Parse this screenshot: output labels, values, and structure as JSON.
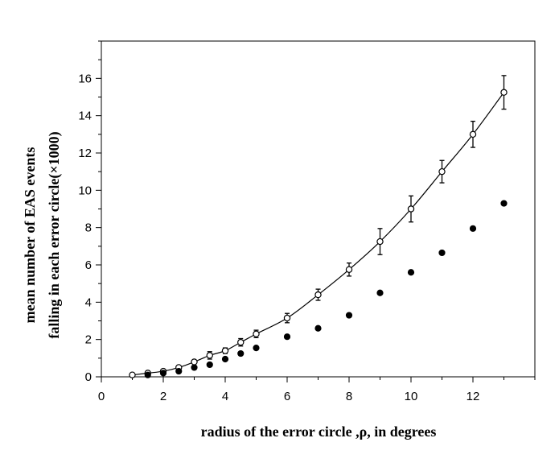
{
  "chart_data": {
    "type": "scatter",
    "title": "",
    "xlabel": "radius of the error circle ,ρ, in degrees",
    "ylabel_line1": "mean number of EAS events",
    "ylabel_line2": "falling in each error circle(×1000)",
    "xlim": [
      0,
      14
    ],
    "ylim": [
      0,
      18
    ],
    "xticks": [
      0,
      2,
      4,
      6,
      8,
      10,
      12
    ],
    "yticks": [
      0,
      2,
      4,
      6,
      8,
      10,
      12,
      14,
      16
    ],
    "grid": false,
    "legend": "none",
    "series": [
      {
        "marker": "open-circle",
        "color": "#000000",
        "fit_curve": true,
        "x": [
          1,
          1.5,
          2,
          2.5,
          3,
          3.5,
          4,
          4.5,
          5,
          6,
          7,
          8,
          9,
          10,
          11,
          12,
          13
        ],
        "y": [
          0.1,
          0.2,
          0.3,
          0.5,
          0.8,
          1.15,
          1.4,
          1.85,
          2.3,
          3.15,
          4.4,
          5.75,
          7.25,
          9.0,
          11.0,
          13.0,
          15.25
        ],
        "yerr": [
          0.05,
          0.05,
          0.05,
          0.08,
          0.1,
          0.2,
          0.15,
          0.2,
          0.2,
          0.25,
          0.3,
          0.35,
          0.7,
          0.7,
          0.6,
          0.7,
          0.9
        ]
      },
      {
        "marker": "filled-circle",
        "color": "#000000",
        "fit_curve": false,
        "x": [
          1.5,
          2,
          2.5,
          3,
          3.5,
          4,
          4.5,
          5,
          6,
          7,
          8,
          9,
          10,
          11,
          12,
          13
        ],
        "y": [
          0.1,
          0.2,
          0.3,
          0.5,
          0.65,
          0.95,
          1.25,
          1.55,
          2.15,
          2.6,
          3.3,
          4.5,
          5.6,
          6.65,
          7.95,
          9.3
        ]
      }
    ]
  }
}
